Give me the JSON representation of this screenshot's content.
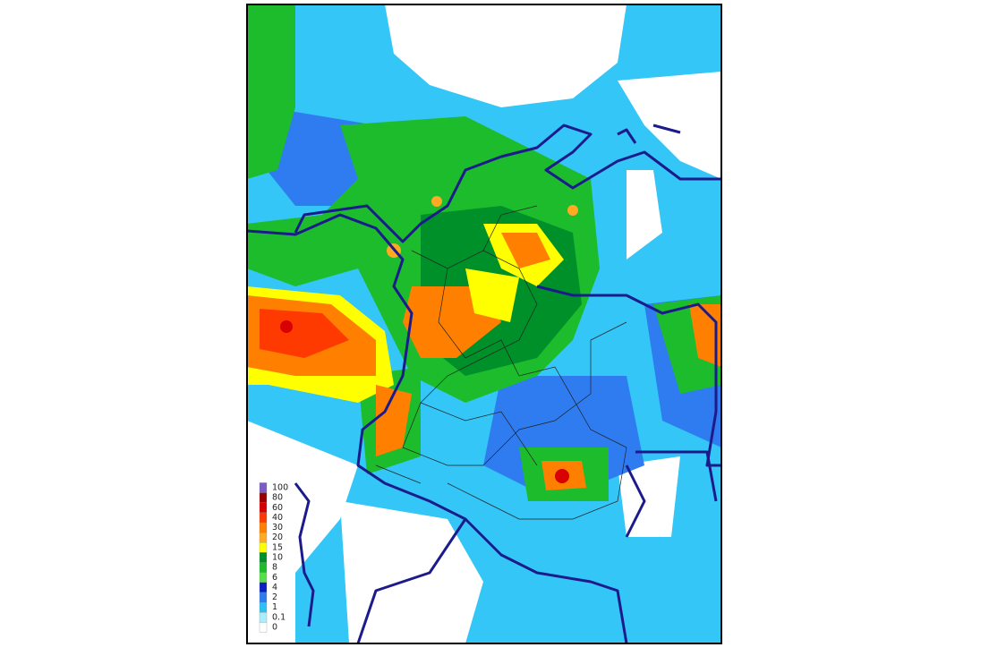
{
  "legend": {
    "items": [
      {
        "label": "100",
        "color": "#7b5cc4"
      },
      {
        "label": "80",
        "color": "#9a0000"
      },
      {
        "label": "60",
        "color": "#d80000"
      },
      {
        "label": "40",
        "color": "#ff3a00"
      },
      {
        "label": "30",
        "color": "#ff7f00"
      },
      {
        "label": "20",
        "color": "#ffaa22"
      },
      {
        "label": "15",
        "color": "#ffff00"
      },
      {
        "label": "10",
        "color": "#00902a"
      },
      {
        "label": "8",
        "color": "#1cbc2c"
      },
      {
        "label": "6",
        "color": "#55e04a"
      },
      {
        "label": "4",
        "color": "#0a1fc4"
      },
      {
        "label": "2",
        "color": "#2f7cf0"
      },
      {
        "label": "1",
        "color": "#2cc0f4"
      },
      {
        "label": "0.1",
        "color": "#a8eefc"
      },
      {
        "label": "0",
        "color": "#ffffff"
      }
    ]
  }
}
